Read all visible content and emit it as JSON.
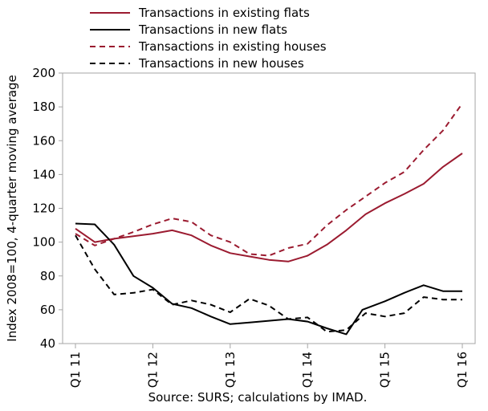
{
  "chart_data": {
    "type": "line",
    "xlabel": "",
    "ylabel": "Index 2008=100, 4-quarter moving average",
    "ylim": [
      40,
      200
    ],
    "yticks": [
      40,
      60,
      80,
      100,
      120,
      140,
      160,
      180,
      200
    ],
    "x_tick_labels": [
      "Q1 11",
      "Q1 12",
      "Q1 13",
      "Q1 14",
      "Q1 15",
      "Q1 16"
    ],
    "x": [
      "Q1 11",
      "M 11-2",
      "M 11-3",
      "M 11-4",
      "M 11-5",
      "M 11-6",
      "M 11-7",
      "M 11-8",
      "M 11-9",
      "M 11-10",
      "M 11-11",
      "M 11-12",
      "Q1 12",
      "M 12-2",
      "M 12-3",
      "M 12-4",
      "M 12-5",
      "M 12-6",
      "M 12-7",
      "M 12-8",
      "M 12-9",
      "M 12-10",
      "M 12-11",
      "M 12-12",
      "Q1 13",
      "M 13-2",
      "M 13-3",
      "M 13-4",
      "M 13-5",
      "M 13-6",
      "M 13-7",
      "M 13-8",
      "M 13-9",
      "M 13-10",
      "M 13-11",
      "M 13-12",
      "Q1 14",
      "M 14-2",
      "M 14-3",
      "M 14-4",
      "M 14-5",
      "M 14-6",
      "M 14-7",
      "M 14-8",
      "M 14-9",
      "M 14-10",
      "M 14-11",
      "M 14-12",
      "Q1 15",
      "M 15-2",
      "M 15-3",
      "M 15-4",
      "M 15-5",
      "M 15-6",
      "M 15-7",
      "M 15-8",
      "M 15-9",
      "M 15-10",
      "M 15-11",
      "M 15-12",
      "Q1 16"
    ],
    "series": [
      {
        "name": "Transactions in existing flats",
        "color": "#9b1b30",
        "dash": "solid",
        "points": [
          [
            0,
            108
          ],
          [
            3,
            100
          ],
          [
            6,
            102
          ],
          [
            12,
            105
          ],
          [
            15,
            107
          ],
          [
            18,
            104
          ],
          [
            21,
            98
          ],
          [
            24,
            93.5
          ],
          [
            27,
            91.5
          ],
          [
            30,
            89.5
          ],
          [
            33,
            88.5
          ],
          [
            36,
            92
          ],
          [
            39,
            98.5
          ],
          [
            42,
            107
          ],
          [
            45,
            116.5
          ],
          [
            48,
            123
          ],
          [
            51,
            128.5
          ],
          [
            54,
            134.5
          ],
          [
            57,
            144.5
          ],
          [
            60,
            152.5
          ]
        ]
      },
      {
        "name": "Transactions in new flats",
        "color": "#000000",
        "dash": "solid",
        "points": [
          [
            0,
            111
          ],
          [
            3,
            110.5
          ],
          [
            6,
            98.5
          ],
          [
            9,
            80
          ],
          [
            12,
            73
          ],
          [
            15,
            63.5
          ],
          [
            18,
            61
          ],
          [
            21,
            56
          ],
          [
            24,
            51.5
          ],
          [
            27,
            52.5
          ],
          [
            30,
            53.5
          ],
          [
            33,
            54.5
          ],
          [
            36,
            53
          ],
          [
            39,
            49
          ],
          [
            42,
            45.5
          ],
          [
            44.5,
            60
          ],
          [
            48,
            65
          ],
          [
            51,
            70
          ],
          [
            54,
            74.5
          ],
          [
            57,
            71
          ],
          [
            60,
            71
          ]
        ]
      },
      {
        "name": "Transactions in existing houses",
        "color": "#9b1b30",
        "dash": "dashed",
        "points": [
          [
            0,
            105
          ],
          [
            3,
            98
          ],
          [
            6,
            102
          ],
          [
            9,
            106
          ],
          [
            12,
            110.5
          ],
          [
            15,
            114
          ],
          [
            18,
            112
          ],
          [
            21,
            104
          ],
          [
            24,
            100
          ],
          [
            27,
            93
          ],
          [
            30,
            92
          ],
          [
            33,
            96.5
          ],
          [
            36,
            99
          ],
          [
            39,
            110
          ],
          [
            42,
            119
          ],
          [
            45,
            127
          ],
          [
            48,
            135
          ],
          [
            51,
            141.5
          ],
          [
            54,
            154.5
          ],
          [
            57,
            166
          ],
          [
            60,
            182
          ]
        ]
      },
      {
        "name": "Transactions in new houses",
        "color": "#000000",
        "dash": "dashed",
        "points": [
          [
            0,
            104
          ],
          [
            3,
            84
          ],
          [
            6,
            69
          ],
          [
            9,
            70
          ],
          [
            12,
            72
          ],
          [
            15,
            63
          ],
          [
            18,
            65.5
          ],
          [
            21,
            63
          ],
          [
            24,
            58.5
          ],
          [
            27,
            66.5
          ],
          [
            30,
            62.5
          ],
          [
            33,
            54.5
          ],
          [
            36,
            55.5
          ],
          [
            39,
            47
          ],
          [
            42,
            48
          ],
          [
            45,
            58
          ],
          [
            48,
            56
          ],
          [
            51,
            58
          ],
          [
            54,
            67.5
          ],
          [
            57,
            66
          ],
          [
            60,
            66
          ]
        ]
      }
    ],
    "legend_position": "top",
    "grid": false,
    "source_note": "Source: SURS; calculations by IMAD."
  }
}
